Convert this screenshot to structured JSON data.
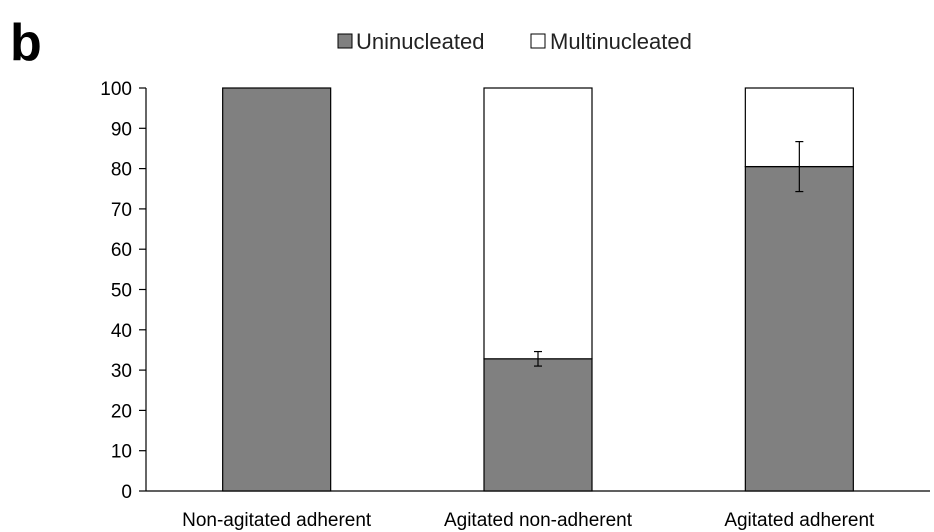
{
  "panel_label": "b",
  "chart_data": {
    "type": "bar",
    "stacked": true,
    "categories": [
      "Non-agitated adherent",
      "Agitated non-adherent",
      "Agitated adherent"
    ],
    "series": [
      {
        "name": "Uninucleated",
        "values": [
          100,
          32.8,
          80.5
        ],
        "error": [
          0,
          1.8,
          6.2
        ],
        "color": "#808080"
      },
      {
        "name": "Multinucleated",
        "values": [
          0,
          67.2,
          19.5
        ],
        "color": "#ffffff"
      }
    ],
    "yticks": [
      0,
      10,
      20,
      30,
      40,
      50,
      60,
      70,
      80,
      90,
      100
    ],
    "ylim": [
      0,
      100
    ],
    "xlabel": "",
    "ylabel": "",
    "legend": "top-center",
    "grid": false
  }
}
